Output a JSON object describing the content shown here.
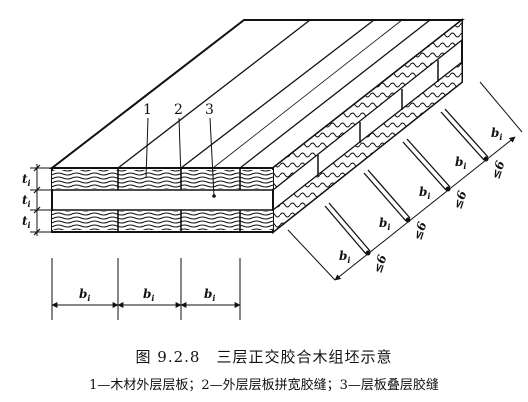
{
  "figure": {
    "callouts": [
      "1",
      "2",
      "3"
    ],
    "thickness_labels": [
      "t",
      "t",
      "t"
    ],
    "thickness_subscript": "i",
    "width_label": "b",
    "width_subscript": "i",
    "gap_label": "≤6",
    "caption_title": "图 9.2.8　三层正交胶合木组坯示意",
    "caption_legend": "1—木材外层层板；2—外层层板拼宽胶缝；3—层板叠层胶缝"
  }
}
